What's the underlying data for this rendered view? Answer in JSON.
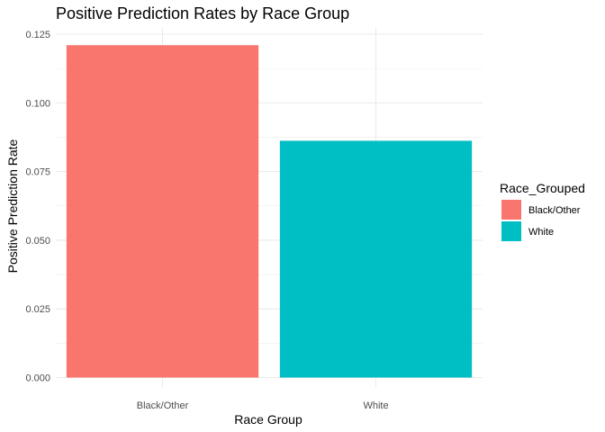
{
  "chart_data": {
    "type": "bar",
    "title": "Positive Prediction Rates by Race Group",
    "xlabel": "Race Group",
    "ylabel": "Positive Prediction Rate",
    "categories": [
      "Black/Other",
      "White"
    ],
    "values": [
      0.121,
      0.0862
    ],
    "colors": [
      "#F8766D",
      "#00BFC4"
    ],
    "ylim": [
      0,
      0.125
    ],
    "yticks": [
      0,
      0.025,
      0.05,
      0.075,
      0.1,
      0.125
    ],
    "ytick_labels": [
      "0.000",
      "0.025",
      "0.050",
      "0.075",
      "0.100",
      "0.125"
    ],
    "grid": true,
    "legend": {
      "title": "Race_Grouped",
      "position": "right",
      "entries": [
        "Black/Other",
        "White"
      ]
    }
  }
}
